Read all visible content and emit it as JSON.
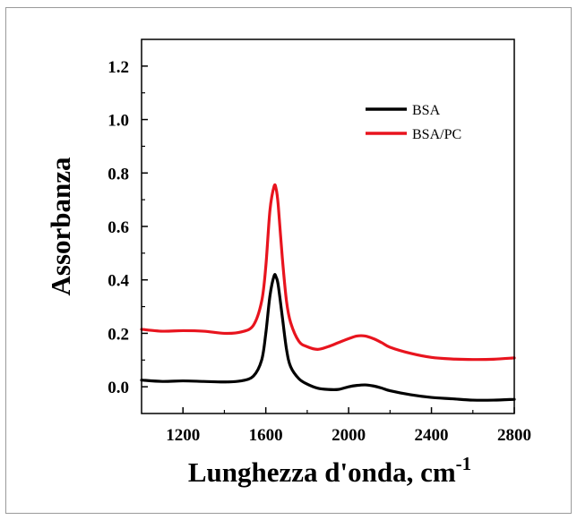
{
  "chart_data": {
    "type": "line",
    "title": "",
    "xlabel": "Lunghezza d'onda, cm",
    "xlabel_superscript": "-1",
    "ylabel": "Assorbanza",
    "xlim": [
      1000,
      2800
    ],
    "ylim": [
      -0.1,
      1.3
    ],
    "xticks": [
      1200,
      1600,
      2000,
      2400,
      2800
    ],
    "xtick_labels": [
      "1200",
      "1600",
      "2000",
      "2400",
      "2800"
    ],
    "yticks": [
      0.0,
      0.2,
      0.4,
      0.6,
      0.8,
      1.0,
      1.2
    ],
    "ytick_labels": [
      "0.0",
      "0.2",
      "0.4",
      "0.6",
      "0.8",
      "1.0",
      "1.2"
    ],
    "grid": false,
    "legend_position": "top-right",
    "series": [
      {
        "name": "BSA",
        "color": "#000000",
        "x": [
          1000,
          1100,
          1200,
          1300,
          1400,
          1480,
          1540,
          1580,
          1600,
          1620,
          1640,
          1650,
          1660,
          1680,
          1700,
          1720,
          1760,
          1800,
          1850,
          1900,
          1950,
          2000,
          2040,
          2080,
          2120,
          2160,
          2200,
          2300,
          2400,
          2500,
          2600,
          2700,
          2800
        ],
        "y": [
          0.025,
          0.02,
          0.022,
          0.02,
          0.018,
          0.022,
          0.04,
          0.1,
          0.2,
          0.34,
          0.415,
          0.41,
          0.38,
          0.26,
          0.14,
          0.075,
          0.03,
          0.01,
          -0.005,
          -0.01,
          -0.01,
          0.0,
          0.005,
          0.007,
          0.003,
          -0.005,
          -0.015,
          -0.03,
          -0.04,
          -0.045,
          -0.05,
          -0.05,
          -0.047
        ]
      },
      {
        "name": "BSA/PC",
        "color": "#e8141e",
        "x": [
          1000,
          1100,
          1200,
          1300,
          1400,
          1480,
          1540,
          1580,
          1600,
          1620,
          1640,
          1650,
          1660,
          1680,
          1700,
          1720,
          1760,
          1800,
          1850,
          1900,
          1950,
          2000,
          2040,
          2080,
          2120,
          2160,
          2200,
          2300,
          2400,
          2500,
          2600,
          2700,
          2800
        ],
        "y": [
          0.215,
          0.208,
          0.21,
          0.208,
          0.2,
          0.205,
          0.23,
          0.32,
          0.45,
          0.66,
          0.75,
          0.74,
          0.68,
          0.48,
          0.32,
          0.24,
          0.17,
          0.15,
          0.14,
          0.15,
          0.165,
          0.18,
          0.19,
          0.19,
          0.18,
          0.165,
          0.148,
          0.125,
          0.11,
          0.104,
          0.102,
          0.103,
          0.108
        ]
      }
    ]
  }
}
